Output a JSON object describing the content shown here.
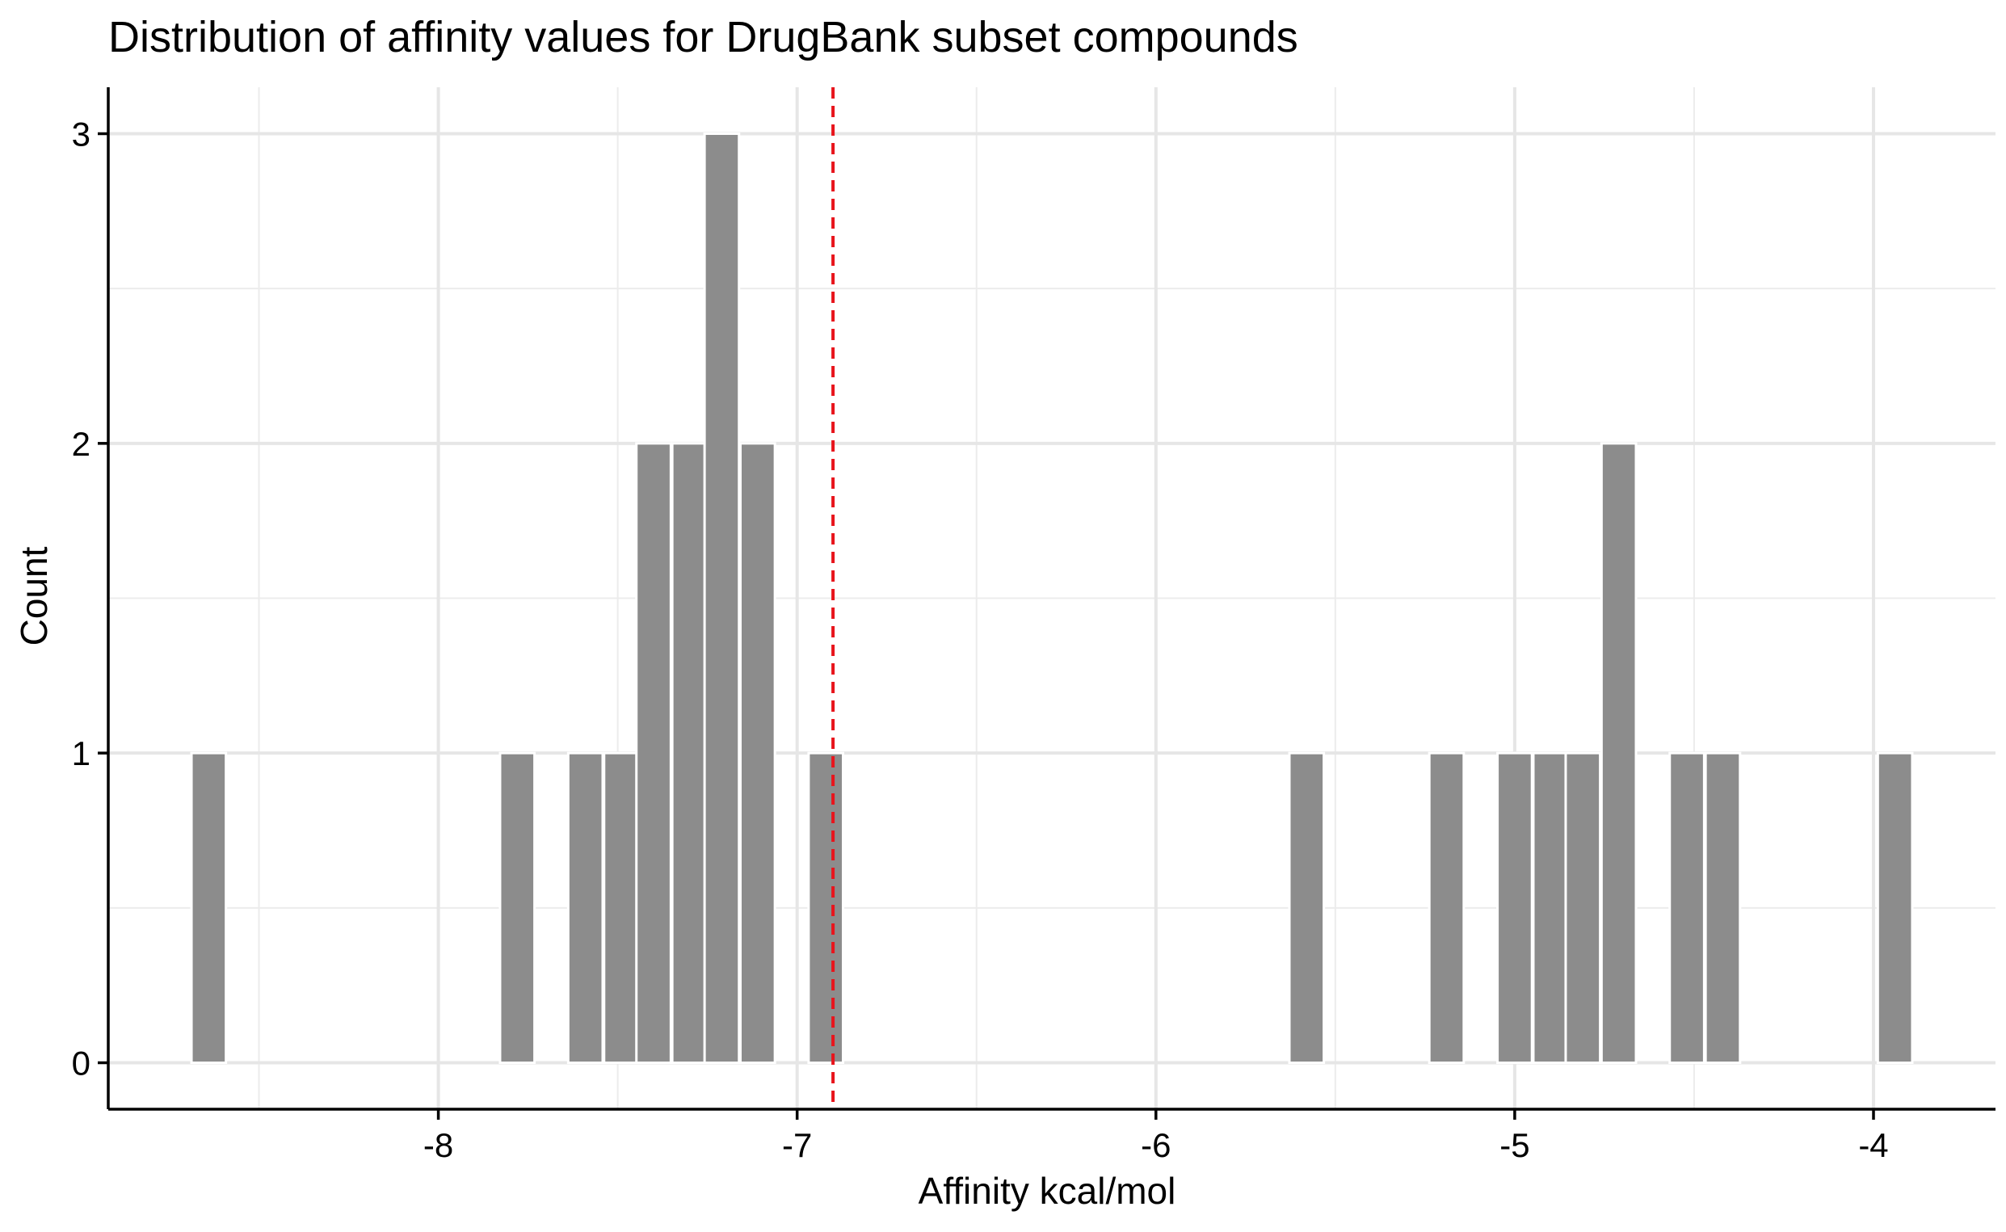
{
  "chart_data": {
    "type": "bar",
    "title": "Distribution of affinity values for DrugBank subset compounds",
    "xlabel": "Affinity kcal/mol",
    "ylabel": "Count",
    "xlim": [
      -8.92,
      -3.66
    ],
    "ylim": [
      -0.15,
      3.15
    ],
    "x_ticks": [
      -8,
      -7,
      -6,
      -5,
      -4
    ],
    "x_tick_labels": [
      "-8",
      "-7",
      "-6",
      "-5",
      "-4"
    ],
    "y_ticks": [
      0,
      1,
      2,
      3
    ],
    "y_tick_labels": [
      "0",
      "1",
      "2",
      "3"
    ],
    "x_minor_grid": [
      -8.5,
      -7.5,
      -6.5,
      -5.5,
      -4.5
    ],
    "y_minor_grid": [
      0.5,
      1.5,
      2.5
    ],
    "grid": true,
    "bin_width": 0.096,
    "bins": [
      {
        "x": -8.64,
        "count": 1
      },
      {
        "x": -7.78,
        "count": 1
      },
      {
        "x": -7.59,
        "count": 1
      },
      {
        "x": -7.49,
        "count": 1
      },
      {
        "x": -7.4,
        "count": 2
      },
      {
        "x": -7.3,
        "count": 2
      },
      {
        "x": -7.21,
        "count": 3
      },
      {
        "x": -7.11,
        "count": 2
      },
      {
        "x": -6.92,
        "count": 1
      },
      {
        "x": -5.58,
        "count": 1
      },
      {
        "x": -5.19,
        "count": 1
      },
      {
        "x": -5.0,
        "count": 1
      },
      {
        "x": -4.9,
        "count": 1
      },
      {
        "x": -4.81,
        "count": 1
      },
      {
        "x": -4.71,
        "count": 2
      },
      {
        "x": -4.52,
        "count": 1
      },
      {
        "x": -4.42,
        "count": 1
      },
      {
        "x": -3.94,
        "count": 1
      }
    ],
    "reference_line": {
      "x": -6.9,
      "color": "#e8141c",
      "style": "dashed"
    },
    "bar_color": "#8c8c8c",
    "bar_outline": "#ffffff"
  }
}
